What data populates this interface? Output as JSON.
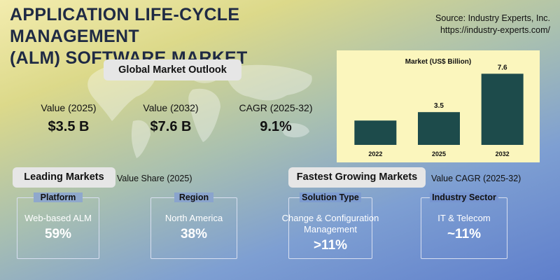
{
  "title": {
    "line1": "APPLICATION LIFE-CYCLE MANAGEMENT",
    "line2": "(ALM) SOFTWARE MARKET"
  },
  "source": {
    "line1": "Source: Industry Experts, Inc.",
    "line2": "https://industry-experts.com/"
  },
  "outlook": {
    "heading": "Global Market Outlook",
    "kpis": [
      {
        "label": "Value (2025)",
        "value": "$3.5 B"
      },
      {
        "label": "Value (2032)",
        "value": "$7.6 B"
      },
      {
        "label": "CAGR (2025-32)",
        "value": "9.1%"
      }
    ]
  },
  "chart_data": {
    "type": "bar",
    "title": "Market (US$ Billion)",
    "categories": [
      "2022",
      "2025",
      "2032"
    ],
    "values": [
      null,
      3.5,
      7.6
    ],
    "data_labels": [
      "",
      "3.5",
      "7.6"
    ],
    "ylim": [
      0,
      8
    ],
    "grid": false,
    "bar_color": "#1d4b4b"
  },
  "leading": {
    "heading": "Leading Markets",
    "sublabel": "Value Share (2025)",
    "cards": [
      {
        "head": "Platform",
        "text": "Web-based ALM",
        "value": "59%"
      },
      {
        "head": "Region",
        "text": "North America",
        "value": "38%"
      }
    ]
  },
  "fastest": {
    "heading": "Fastest Growing Markets",
    "sublabel": "Value CAGR (2025-32)",
    "cards": [
      {
        "head": "Solution Type",
        "text": "Change & Configuration Management",
        "value": ">11%"
      },
      {
        "head": "Industry Sector",
        "text": "IT & Telecom",
        "value": "~11%"
      }
    ]
  }
}
